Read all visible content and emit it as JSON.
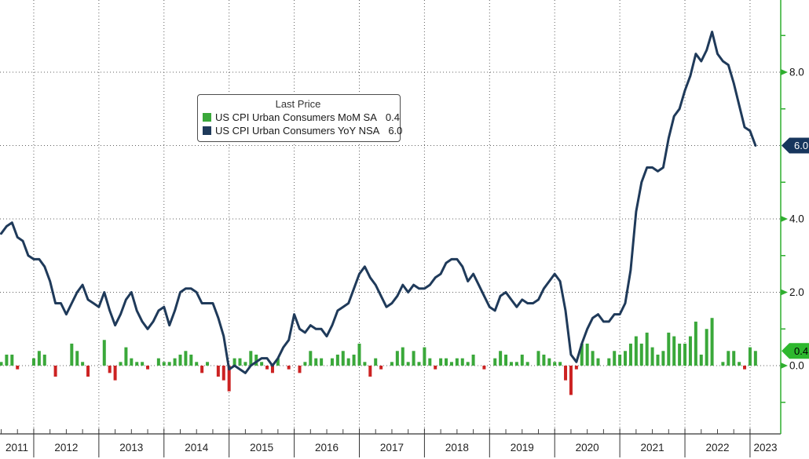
{
  "chart_data": {
    "type": "bar+line",
    "legend": {
      "title": "Last Price"
    },
    "x_axis": {
      "unit": "month",
      "start": "2011-07",
      "end": "2023-02",
      "year_labels": [
        "2011",
        "2012",
        "2013",
        "2014",
        "2015",
        "2016",
        "2017",
        "2018",
        "2019",
        "2020",
        "2021",
        "2022",
        "2023"
      ]
    },
    "y_axis": {
      "side": "right",
      "major_ticks": [
        0.0,
        2.0,
        4.0,
        6.0,
        8.0
      ],
      "major_tick_labels": [
        "0.0",
        "2.0",
        "4.0",
        "6.0",
        "8.0"
      ],
      "minor_ticks": [
        -1.0,
        1.0,
        3.0,
        5.0,
        7.0,
        9.0
      ],
      "axis_color": "#2fae2f",
      "label_color": "#111111"
    },
    "grid": {
      "style": "dotted",
      "color": "#606060",
      "h_lines": [
        0,
        2,
        4,
        6,
        8
      ],
      "v_lines": "year-boundaries"
    },
    "series": [
      {
        "name": "US CPI Urban Consumers MoM SA",
        "type": "bar",
        "last": 0.4,
        "last_label": "0.4",
        "color_positive": "#3aa83a",
        "color_negative": "#cc2222",
        "badge": {
          "text": "0.4",
          "bg": "#2eb82e",
          "fg": "#000000"
        },
        "values": [
          0.1,
          0.3,
          0.3,
          -0.1,
          0.0,
          0.0,
          0.2,
          0.4,
          0.3,
          0.0,
          -0.3,
          0.0,
          0.0,
          0.6,
          0.4,
          0.1,
          -0.3,
          0.0,
          0.0,
          0.7,
          -0.2,
          -0.4,
          0.1,
          0.5,
          0.2,
          0.1,
          0.1,
          -0.1,
          0.0,
          0.2,
          0.1,
          0.1,
          0.2,
          0.3,
          0.4,
          0.3,
          0.1,
          -0.2,
          0.1,
          0.0,
          -0.3,
          -0.4,
          -0.7,
          0.2,
          0.2,
          0.1,
          0.4,
          0.3,
          0.1,
          -0.1,
          -0.2,
          0.2,
          0.0,
          -0.1,
          0.0,
          -0.2,
          0.1,
          0.4,
          0.2,
          0.2,
          0.0,
          0.2,
          0.3,
          0.4,
          0.2,
          0.3,
          0.6,
          0.1,
          -0.3,
          0.2,
          -0.1,
          0.0,
          0.1,
          0.4,
          0.5,
          0.1,
          0.4,
          0.1,
          0.5,
          0.2,
          -0.1,
          0.2,
          0.2,
          0.1,
          0.2,
          0.2,
          0.1,
          0.3,
          0.0,
          -0.1,
          0.0,
          0.2,
          0.4,
          0.3,
          0.1,
          0.1,
          0.3,
          0.1,
          0.0,
          0.4,
          0.3,
          0.2,
          0.1,
          0.1,
          -0.4,
          -0.8,
          -0.1,
          0.6,
          0.6,
          0.4,
          0.2,
          0.0,
          0.2,
          0.4,
          0.3,
          0.4,
          0.6,
          0.8,
          0.6,
          0.9,
          0.5,
          0.3,
          0.4,
          0.9,
          0.8,
          0.6,
          0.6,
          0.8,
          1.2,
          0.3,
          1.0,
          1.3,
          0.0,
          0.1,
          0.4,
          0.4,
          0.1,
          -0.1,
          0.5,
          0.4
        ]
      },
      {
        "name": "US CPI Urban Consumers YoY NSA",
        "type": "line",
        "last": 6.0,
        "last_label": "6.0",
        "color": "#1f3a5a",
        "badge": {
          "text": "6.0",
          "bg": "#17365d",
          "fg": "#ffffff"
        },
        "values": [
          3.6,
          3.8,
          3.9,
          3.5,
          3.4,
          3.0,
          2.9,
          2.9,
          2.7,
          2.3,
          1.7,
          1.7,
          1.4,
          1.7,
          2.0,
          2.2,
          1.8,
          1.7,
          1.6,
          2.0,
          1.5,
          1.1,
          1.4,
          1.8,
          2.0,
          1.5,
          1.2,
          1.0,
          1.2,
          1.5,
          1.6,
          1.1,
          1.5,
          2.0,
          2.1,
          2.1,
          2.0,
          1.7,
          1.7,
          1.7,
          1.3,
          0.8,
          -0.1,
          0.0,
          -0.1,
          -0.2,
          0.0,
          0.1,
          0.2,
          0.2,
          0.0,
          0.2,
          0.5,
          0.7,
          1.4,
          1.0,
          0.9,
          1.1,
          1.0,
          1.0,
          0.8,
          1.1,
          1.5,
          1.6,
          1.7,
          2.1,
          2.5,
          2.7,
          2.4,
          2.2,
          1.9,
          1.6,
          1.7,
          1.9,
          2.2,
          2.0,
          2.2,
          2.1,
          2.1,
          2.2,
          2.4,
          2.5,
          2.8,
          2.9,
          2.9,
          2.7,
          2.3,
          2.5,
          2.2,
          1.9,
          1.6,
          1.5,
          1.9,
          2.0,
          1.8,
          1.6,
          1.8,
          1.7,
          1.7,
          1.8,
          2.1,
          2.3,
          2.5,
          2.3,
          1.5,
          0.3,
          0.1,
          0.6,
          1.0,
          1.3,
          1.4,
          1.2,
          1.2,
          1.4,
          1.4,
          1.7,
          2.6,
          4.2,
          5.0,
          5.4,
          5.4,
          5.3,
          5.4,
          6.2,
          6.8,
          7.0,
          7.5,
          7.9,
          8.5,
          8.3,
          8.6,
          9.1,
          8.5,
          8.3,
          8.2,
          7.7,
          7.1,
          6.5,
          6.4,
          6.0
        ]
      }
    ]
  }
}
